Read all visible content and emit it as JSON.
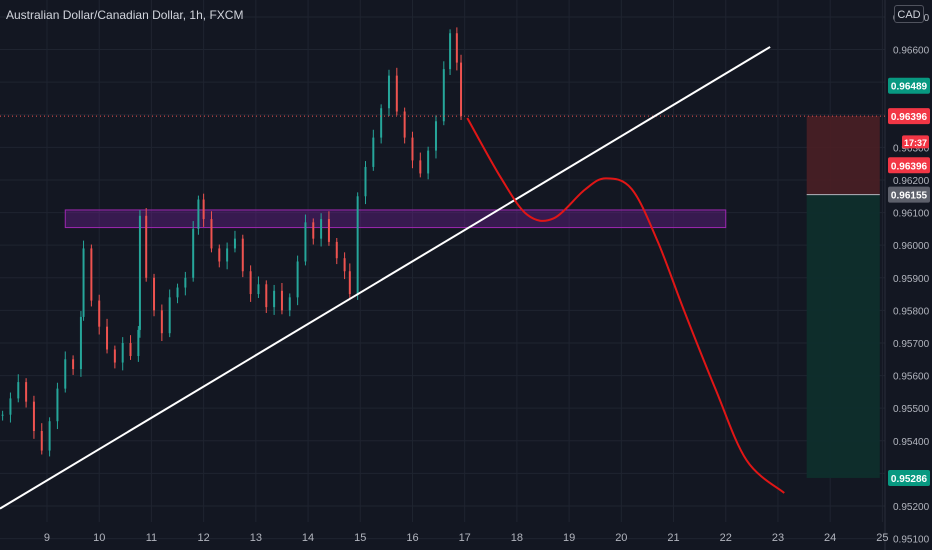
{
  "header": {
    "title": "Australian Dollar/Canadian Dollar, 1h, FXCM",
    "currency": "CAD"
  },
  "colors": {
    "background": "#131722",
    "grid": "#1f2430",
    "axis_text": "#b2b5be",
    "candle_up": "#26a69a",
    "candle_down": "#ef5350",
    "trendline": "#ffffff",
    "projection": "#e01616",
    "zone_border": "#9c27b0",
    "zone_fill": "#7b1fa2",
    "stop_zone": "#4a1f25",
    "target_zone": "#0e2e2c",
    "badge_green": "#089981",
    "badge_red": "#f23645",
    "badge_gray": "#5d606b"
  },
  "chart_data": {
    "type": "candlestick",
    "symbol": "Australian Dollar/Canadian Dollar",
    "timeframe": "1h",
    "source": "FXCM",
    "x_ticks": [
      "9",
      "10",
      "11",
      "12",
      "13",
      "14",
      "15",
      "16",
      "17",
      "18",
      "19",
      "20",
      "21",
      "22",
      "23",
      "24",
      "25"
    ],
    "y_ticks": [
      "0.95100",
      "0.95200",
      "0.95300",
      "0.95400",
      "0.95500",
      "0.95600",
      "0.95700",
      "0.95800",
      "0.95900",
      "0.96000",
      "0.96100",
      "0.96200",
      "0.96300",
      "0.96400",
      "0.96500",
      "0.96600",
      "0.96700"
    ],
    "ylim": [
      0.95065,
      0.96752
    ],
    "xlim": [
      8.1,
      25.05
    ],
    "price_badges": [
      {
        "label": "0.96489",
        "value": 0.96489,
        "kind": "green"
      },
      {
        "label": "0.96396",
        "value": 0.96396,
        "kind": "red"
      },
      {
        "label": "17:37",
        "value": 0.96317,
        "kind": "red-small"
      },
      {
        "label": "0.96396",
        "value": 0.96245,
        "kind": "red"
      },
      {
        "label": "0.96155",
        "value": 0.96155,
        "kind": "gray"
      },
      {
        "label": "0.95286",
        "value": 0.95286,
        "kind": "green"
      }
    ],
    "last_price": 0.96396,
    "zone": {
      "x_start": 9.35,
      "x_end": 22.0,
      "y_low": 0.96054,
      "y_high": 0.96108
    },
    "trendline": {
      "x1": 8.1,
      "y1": 0.95192,
      "x2": 22.85,
      "y2": 0.96608
    },
    "position": {
      "x_start": 23.55,
      "x_end": 24.95,
      "entry": 0.96155,
      "stop": 0.96396,
      "target": 0.95286
    },
    "projection": [
      [
        17.05,
        0.9639
      ],
      [
        17.7,
        0.96205
      ],
      [
        18.2,
        0.96093
      ],
      [
        18.7,
        0.96082
      ],
      [
        19.3,
        0.9617
      ],
      [
        19.7,
        0.96205
      ],
      [
        20.2,
        0.96172
      ],
      [
        20.7,
        0.9601
      ],
      [
        21.2,
        0.958
      ],
      [
        21.8,
        0.9556
      ],
      [
        22.4,
        0.9534
      ],
      [
        23.12,
        0.9524
      ]
    ],
    "series": [
      {
        "name": "AUD/CAD",
        "points": [
          [
            8.15,
            0.9548
          ],
          [
            8.3,
            0.9553
          ],
          [
            8.45,
            0.9558
          ],
          [
            8.6,
            0.9552
          ],
          [
            8.75,
            0.9543
          ],
          [
            8.9,
            0.9537
          ],
          [
            9.05,
            0.9546
          ],
          [
            9.2,
            0.9556
          ],
          [
            9.35,
            0.9565
          ],
          [
            9.5,
            0.9562
          ],
          [
            9.65,
            0.9578
          ],
          [
            9.7,
            0.9599
          ],
          [
            9.85,
            0.9583
          ],
          [
            10.0,
            0.9575
          ],
          [
            10.15,
            0.9568
          ],
          [
            10.3,
            0.9564
          ],
          [
            10.45,
            0.957
          ],
          [
            10.6,
            0.9566
          ],
          [
            10.75,
            0.9574
          ],
          [
            10.78,
            0.9609
          ],
          [
            10.9,
            0.959
          ],
          [
            11.05,
            0.958
          ],
          [
            11.2,
            0.9573
          ],
          [
            11.35,
            0.9584
          ],
          [
            11.5,
            0.9587
          ],
          [
            11.65,
            0.959
          ],
          [
            11.8,
            0.9605
          ],
          [
            11.9,
            0.9614
          ],
          [
            12.0,
            0.9608
          ],
          [
            12.15,
            0.9599
          ],
          [
            12.3,
            0.9595
          ],
          [
            12.45,
            0.9599
          ],
          [
            12.6,
            0.9602
          ],
          [
            12.75,
            0.9592
          ],
          [
            12.9,
            0.9585
          ],
          [
            13.05,
            0.9588
          ],
          [
            13.2,
            0.9581
          ],
          [
            13.35,
            0.9586
          ],
          [
            13.5,
            0.958
          ],
          [
            13.65,
            0.9584
          ],
          [
            13.8,
            0.9595
          ],
          [
            13.95,
            0.9607
          ],
          [
            14.1,
            0.9602
          ],
          [
            14.25,
            0.9608
          ],
          [
            14.4,
            0.9601
          ],
          [
            14.55,
            0.9596
          ],
          [
            14.7,
            0.9592
          ],
          [
            14.8,
            0.9585
          ],
          [
            14.95,
            0.9615
          ],
          [
            15.1,
            0.9624
          ],
          [
            15.25,
            0.9633
          ],
          [
            15.4,
            0.9642
          ],
          [
            15.55,
            0.9652
          ],
          [
            15.7,
            0.9641
          ],
          [
            15.85,
            0.9633
          ],
          [
            16.0,
            0.9626
          ],
          [
            16.15,
            0.9622
          ],
          [
            16.3,
            0.9629
          ],
          [
            16.45,
            0.9638
          ],
          [
            16.6,
            0.9654
          ],
          [
            16.72,
            0.9665
          ],
          [
            16.85,
            0.9656
          ],
          [
            16.93,
            0.96396
          ]
        ]
      }
    ]
  }
}
